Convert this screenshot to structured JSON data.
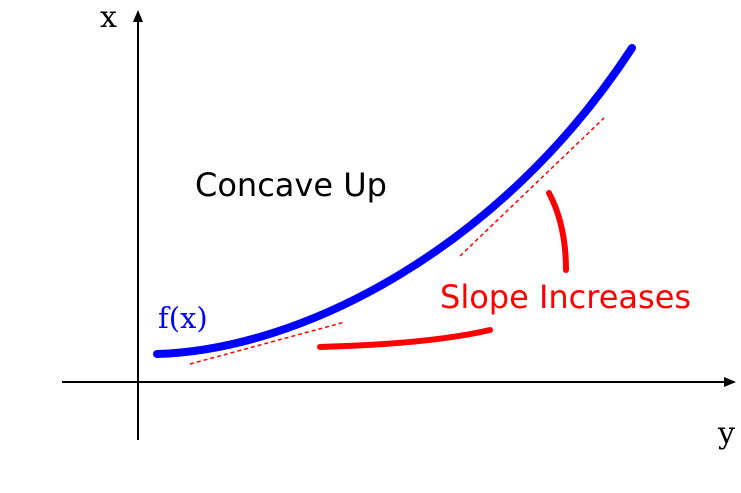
{
  "labels": {
    "vertical_axis": "x",
    "horizontal_axis": "y",
    "function": "f(x)",
    "concavity": "Concave Up",
    "annotation": "Slope Increases"
  },
  "colors": {
    "axes": "#000000",
    "curve": "#0000ff",
    "annotation": "#ff0000",
    "tangent": "#ff0000"
  }
}
